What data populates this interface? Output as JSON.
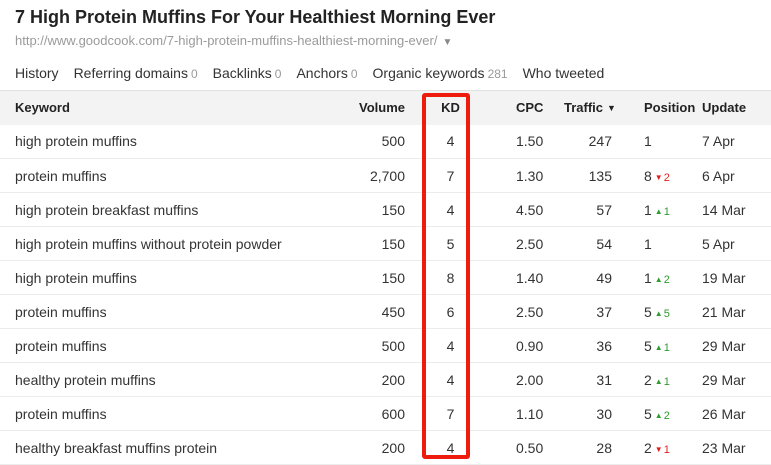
{
  "page": {
    "title": "7 High Protein Muffins For Your Healthiest Morning Ever",
    "url": "http://www.goodcook.com/7-high-protein-muffins-healthiest-morning-ever/",
    "url_caret": "▼"
  },
  "tabs": [
    {
      "label": "History",
      "count": ""
    },
    {
      "label": "Referring domains",
      "count": "0"
    },
    {
      "label": "Backlinks",
      "count": "0"
    },
    {
      "label": "Anchors",
      "count": "0"
    },
    {
      "label": "Organic keywords",
      "count": "281",
      "active": true
    },
    {
      "label": "Who tweeted",
      "count": ""
    }
  ],
  "table": {
    "headers": {
      "keyword": "Keyword",
      "volume": "Volume",
      "kd": "KD",
      "cpc": "CPC",
      "traffic": "Traffic",
      "traffic_sort_icon": "▼",
      "position": "Position",
      "update": "Update"
    },
    "rows": [
      {
        "keyword": "high protein muffins",
        "volume": "500",
        "kd": "4",
        "cpc": "1.50",
        "traffic": "247",
        "position": "1",
        "delta": "",
        "delta_dir": "",
        "update": "7 Apr"
      },
      {
        "keyword": "protein muffins",
        "volume": "2,700",
        "kd": "7",
        "cpc": "1.30",
        "traffic": "135",
        "position": "8",
        "delta": "2",
        "delta_dir": "down",
        "update": "6 Apr"
      },
      {
        "keyword": "high protein breakfast muffins",
        "volume": "150",
        "kd": "4",
        "cpc": "4.50",
        "traffic": "57",
        "position": "1",
        "delta": "1",
        "delta_dir": "up",
        "update": "14 Mar"
      },
      {
        "keyword": "high protein muffins without protein powder",
        "volume": "150",
        "kd": "5",
        "cpc": "2.50",
        "traffic": "54",
        "position": "1",
        "delta": "",
        "delta_dir": "",
        "update": "5 Apr"
      },
      {
        "keyword": "high protein muffins",
        "volume": "150",
        "kd": "8",
        "cpc": "1.40",
        "traffic": "49",
        "position": "1",
        "delta": "2",
        "delta_dir": "up",
        "update": "19 Mar"
      },
      {
        "keyword": "protein muffins",
        "volume": "450",
        "kd": "6",
        "cpc": "2.50",
        "traffic": "37",
        "position": "5",
        "delta": "5",
        "delta_dir": "up",
        "update": "21 Mar"
      },
      {
        "keyword": "protein muffins",
        "volume": "500",
        "kd": "4",
        "cpc": "0.90",
        "traffic": "36",
        "position": "5",
        "delta": "1",
        "delta_dir": "up",
        "update": "29 Mar"
      },
      {
        "keyword": "healthy protein muffins",
        "volume": "200",
        "kd": "4",
        "cpc": "2.00",
        "traffic": "31",
        "position": "2",
        "delta": "1",
        "delta_dir": "up",
        "update": "29 Mar"
      },
      {
        "keyword": "protein muffins",
        "volume": "600",
        "kd": "7",
        "cpc": "1.10",
        "traffic": "30",
        "position": "5",
        "delta": "2",
        "delta_dir": "up",
        "update": "26 Mar"
      },
      {
        "keyword": "healthy breakfast muffins protein",
        "volume": "200",
        "kd": "4",
        "cpc": "0.50",
        "traffic": "28",
        "position": "2",
        "delta": "1",
        "delta_dir": "down",
        "update": "23 Mar"
      }
    ]
  },
  "colors": {
    "accent_tab_underline": "#f08a1c",
    "highlight_box": "#ee1c0c",
    "delta_up": "#2f9a2f",
    "delta_down": "#e02020"
  }
}
